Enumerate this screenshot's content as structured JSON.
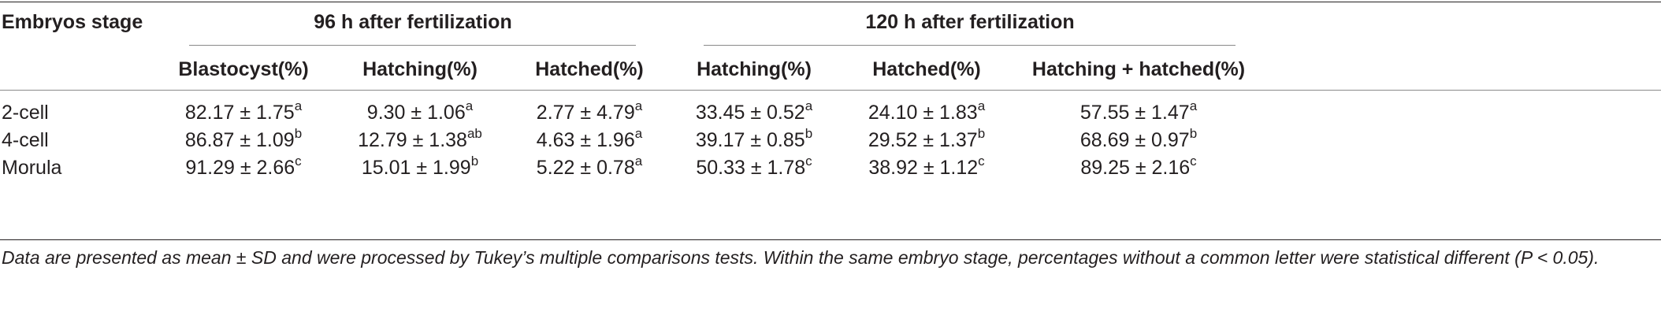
{
  "table": {
    "stub_header": "Embryos stage",
    "groups": [
      "96 h after fertilization",
      "120 h after fertilization"
    ],
    "columns": [
      "Blastocyst(%)",
      "Hatching(%)",
      "Hatched(%)",
      "Hatching(%)",
      "Hatched(%)",
      "Hatching + hatched(%)"
    ],
    "rows": [
      {
        "stage": "2-cell",
        "cells": [
          {
            "v": "82.17 ± 1.75",
            "s": "a"
          },
          {
            "v": "9.30 ± 1.06",
            "s": "a"
          },
          {
            "v": "2.77 ± 4.79",
            "s": "a"
          },
          {
            "v": "33.45 ± 0.52",
            "s": "a"
          },
          {
            "v": "24.10 ± 1.83",
            "s": "a"
          },
          {
            "v": "57.55 ± 1.47",
            "s": "a"
          }
        ]
      },
      {
        "stage": "4-cell",
        "cells": [
          {
            "v": "86.87 ± 1.09",
            "s": "b"
          },
          {
            "v": "12.79 ± 1.38",
            "s": "ab"
          },
          {
            "v": "4.63 ± 1.96",
            "s": "a"
          },
          {
            "v": "39.17 ± 0.85",
            "s": "b"
          },
          {
            "v": "29.52 ± 1.37",
            "s": "b"
          },
          {
            "v": "68.69 ± 0.97",
            "s": "b"
          }
        ]
      },
      {
        "stage": "Morula",
        "cells": [
          {
            "v": "91.29 ± 2.66",
            "s": "c"
          },
          {
            "v": "15.01 ± 1.99",
            "s": "b"
          },
          {
            "v": "5.22 ± 0.78",
            "s": "a"
          },
          {
            "v": "50.33 ± 1.78",
            "s": "c"
          },
          {
            "v": "38.92 ± 1.12",
            "s": "c"
          },
          {
            "v": "89.25 ± 2.16",
            "s": "c"
          }
        ]
      }
    ],
    "footnote": "Data are presented as mean ± SD and were processed by Tukey’s multiple comparisons tests. Within the same embryo stage, percentages without a common letter were statistical different (P < 0.05)."
  }
}
